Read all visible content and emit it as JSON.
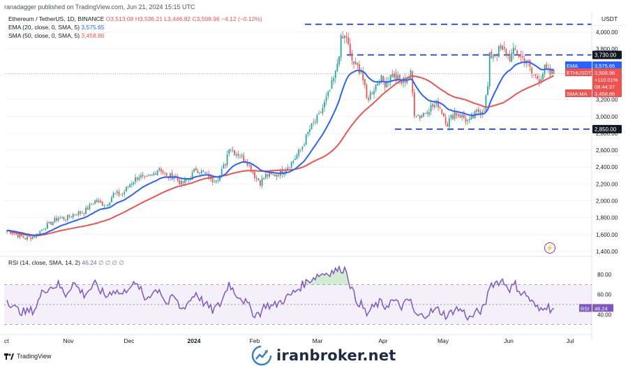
{
  "header": {
    "published": "ranadagger published on TradingView.com, Jun 21, 2024 15:15 UTC",
    "symbol": "Ethereum / TetherUS, 1D, BINANCE",
    "ohlc": "O3,513.08 H3,536.21 L3,446.82 C3,508.96 −4.12 (−0.12%)",
    "ema_label": "EMA (20, close, 0, SMA, 5)",
    "ema_value": "3,575.65",
    "sma_label": "SMA (50, close, 0, SMA, 5)",
    "sma_value": "3,458.86"
  },
  "rsi_header": {
    "label": "RSI (14, close, SMA, 14, 2)",
    "value": "46.24",
    "dots": "∅ ∅ ∅ ∅"
  },
  "footer": {
    "brand": "TradingView",
    "watermark": "iranbroker.net"
  },
  "colors": {
    "up": "#26a69a",
    "down": "#ef5350",
    "ema": "#2962ff",
    "sma": "#ef5350",
    "rsi": "#7e57c2",
    "level_line": "#1e3ddc"
  },
  "chart_data": {
    "type": "candlestick",
    "currency": "USDT",
    "y_ticks": [
      "4,000.00",
      "3,800.00",
      "3,200.00",
      "3,000.00",
      "2,800.00",
      "2,600.00",
      "2,400.00",
      "2,200.00",
      "2,000.00",
      "1,800.00",
      "1,600.00",
      "1,400.00"
    ],
    "y_tick_values": [
      4000,
      3800,
      3200,
      3000,
      2800,
      2600,
      2400,
      2200,
      2000,
      1800,
      1600,
      1400
    ],
    "ylim": [
      1400,
      4100
    ],
    "x_ticks": [
      "ct",
      "Nov",
      "Dec",
      "2024",
      "Feb",
      "Mar",
      "Apr",
      "May",
      "Jun",
      "Jul"
    ],
    "levels": [
      {
        "value": 4093,
        "label": ""
      },
      {
        "value": 3730,
        "label": "3,730.00"
      },
      {
        "value": 2850,
        "label": "2,850.00"
      }
    ],
    "price_labels": [
      {
        "name": "EMA",
        "value": "3,575.65",
        "color": "#2962ff"
      },
      {
        "name": "ETHUSDT",
        "value": "3,508.96",
        "color": "#ef5350"
      },
      {
        "name": "SMA:MA",
        "value": "3,458.86",
        "color": "#ef5350"
      }
    ],
    "countdown": "+110.01%",
    "timer": "08:44:37",
    "close_anchors": [
      [
        0,
        1650
      ],
      [
        5,
        1600
      ],
      [
        10,
        1555
      ],
      [
        15,
        1580
      ],
      [
        20,
        1680
      ],
      [
        28,
        1800
      ],
      [
        32,
        1790
      ],
      [
        36,
        1840
      ],
      [
        42,
        1870
      ],
      [
        48,
        2000
      ],
      [
        54,
        1950
      ],
      [
        58,
        2080
      ],
      [
        63,
        2080
      ],
      [
        67,
        2200
      ],
      [
        72,
        2300
      ],
      [
        75,
        2250
      ],
      [
        79,
        2300
      ],
      [
        83,
        2400
      ],
      [
        87,
        2280
      ],
      [
        91,
        2300
      ],
      [
        95,
        2200
      ],
      [
        100,
        2280
      ],
      [
        103,
        2380
      ],
      [
        107,
        2330
      ],
      [
        112,
        2250
      ],
      [
        116,
        2300
      ],
      [
        119,
        2450
      ],
      [
        121,
        2650
      ],
      [
        124,
        2580
      ],
      [
        127,
        2540
      ],
      [
        131,
        2460
      ],
      [
        135,
        2300
      ],
      [
        138,
        2220
      ],
      [
        141,
        2300
      ],
      [
        145,
        2300
      ],
      [
        150,
        2350
      ],
      [
        155,
        2450
      ],
      [
        160,
        2600
      ],
      [
        165,
        2850
      ],
      [
        170,
        3000
      ],
      [
        175,
        3250
      ],
      [
        179,
        3500
      ],
      [
        182,
        3900
      ],
      [
        185,
        3950
      ],
      [
        187,
        3700
      ],
      [
        190,
        3600
      ],
      [
        193,
        3550
      ],
      [
        196,
        3200
      ],
      [
        199,
        3300
      ],
      [
        203,
        3450
      ],
      [
        206,
        3400
      ],
      [
        210,
        3500
      ],
      [
        215,
        3400
      ],
      [
        220,
        3500
      ],
      [
        222,
        3050
      ],
      [
        225,
        3000
      ],
      [
        230,
        3100
      ],
      [
        235,
        3150
      ],
      [
        240,
        2920
      ],
      [
        244,
        3050
      ],
      [
        248,
        3000
      ],
      [
        252,
        2930
      ],
      [
        256,
        3050
      ],
      [
        260,
        3100
      ],
      [
        262,
        3350
      ],
      [
        263,
        3700
      ],
      [
        266,
        3750
      ],
      [
        270,
        3800
      ],
      [
        274,
        3700
      ],
      [
        277,
        3780
      ],
      [
        280,
        3700
      ],
      [
        283,
        3680
      ],
      [
        286,
        3500
      ],
      [
        290,
        3450
      ],
      [
        293,
        3560
      ],
      [
        296,
        3500
      ],
      [
        298,
        3509
      ]
    ],
    "rsi_anchors": [
      [
        0,
        55
      ],
      [
        5,
        45
      ],
      [
        10,
        42
      ],
      [
        15,
        45
      ],
      [
        20,
        65
      ],
      [
        28,
        70
      ],
      [
        32,
        60
      ],
      [
        36,
        72
      ],
      [
        42,
        60
      ],
      [
        48,
        70
      ],
      [
        54,
        58
      ],
      [
        58,
        65
      ],
      [
        63,
        60
      ],
      [
        67,
        70
      ],
      [
        72,
        68
      ],
      [
        75,
        55
      ],
      [
        79,
        62
      ],
      [
        83,
        66
      ],
      [
        87,
        50
      ],
      [
        91,
        58
      ],
      [
        95,
        45
      ],
      [
        100,
        55
      ],
      [
        103,
        62
      ],
      [
        107,
        52
      ],
      [
        112,
        44
      ],
      [
        116,
        50
      ],
      [
        119,
        62
      ],
      [
        121,
        72
      ],
      [
        124,
        62
      ],
      [
        127,
        58
      ],
      [
        131,
        50
      ],
      [
        135,
        40
      ],
      [
        138,
        42
      ],
      [
        141,
        50
      ],
      [
        145,
        48
      ],
      [
        150,
        54
      ],
      [
        155,
        60
      ],
      [
        160,
        68
      ],
      [
        165,
        75
      ],
      [
        170,
        80
      ],
      [
        175,
        82
      ],
      [
        179,
        84
      ],
      [
        182,
        86
      ],
      [
        185,
        85
      ],
      [
        187,
        70
      ],
      [
        190,
        55
      ],
      [
        193,
        50
      ],
      [
        196,
        40
      ],
      [
        199,
        46
      ],
      [
        203,
        52
      ],
      [
        206,
        48
      ],
      [
        210,
        54
      ],
      [
        215,
        48
      ],
      [
        220,
        55
      ],
      [
        222,
        40
      ],
      [
        225,
        38
      ],
      [
        230,
        42
      ],
      [
        235,
        45
      ],
      [
        240,
        38
      ],
      [
        244,
        46
      ],
      [
        248,
        44
      ],
      [
        252,
        36
      ],
      [
        256,
        42
      ],
      [
        260,
        46
      ],
      [
        262,
        60
      ],
      [
        263,
        70
      ],
      [
        266,
        72
      ],
      [
        270,
        74
      ],
      [
        274,
        66
      ],
      [
        277,
        70
      ],
      [
        280,
        62
      ],
      [
        283,
        60
      ],
      [
        286,
        52
      ],
      [
        290,
        44
      ],
      [
        293,
        50
      ],
      [
        296,
        46
      ],
      [
        298,
        46.24
      ]
    ],
    "rsi_ticks": [
      "80.00",
      "60.00",
      "40.00"
    ],
    "rsi_tick_values": [
      80,
      60,
      40
    ],
    "rsi_bands": [
      70,
      50,
      30
    ],
    "rsi_ylim": [
      22,
      92
    ]
  }
}
